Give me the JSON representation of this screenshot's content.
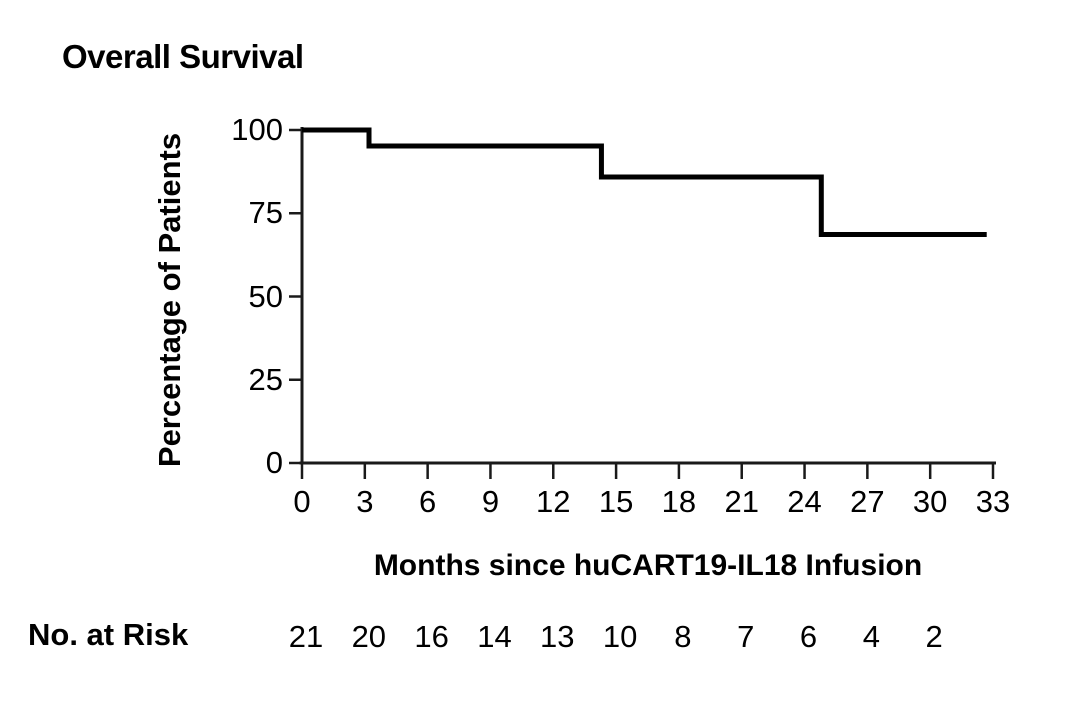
{
  "chart_data": {
    "type": "line",
    "subtype": "kaplan-meier-step",
    "title": "Overall Survival",
    "xlabel": "Months since huCART19-IL18 Infusion",
    "ylabel": "Percentage of Patients",
    "xlim": [
      0,
      33
    ],
    "ylim": [
      0,
      100
    ],
    "xticks": [
      0,
      3,
      6,
      9,
      12,
      15,
      18,
      21,
      24,
      27,
      30,
      33
    ],
    "yticks": [
      100,
      75,
      50,
      25,
      0
    ],
    "grid": false,
    "legend": "none",
    "series": [
      {
        "name": "Overall Survival",
        "step_points": [
          [
            0,
            100
          ],
          [
            3.2,
            100
          ],
          [
            3.2,
            95.2
          ],
          [
            14.3,
            95.2
          ],
          [
            14.3,
            85.9
          ],
          [
            24.8,
            85.9
          ],
          [
            24.8,
            68.6
          ],
          [
            32.7,
            68.6
          ]
        ]
      }
    ],
    "colors": {
      "curve": "#000000",
      "axis": "#1a1a1a",
      "text": "#000000"
    }
  },
  "risk_table": {
    "label": "No. at Risk",
    "months": [
      0,
      3,
      6,
      9,
      12,
      15,
      18,
      21,
      24,
      27,
      30
    ],
    "values": [
      21,
      20,
      16,
      14,
      13,
      10,
      8,
      7,
      6,
      4,
      2
    ]
  }
}
